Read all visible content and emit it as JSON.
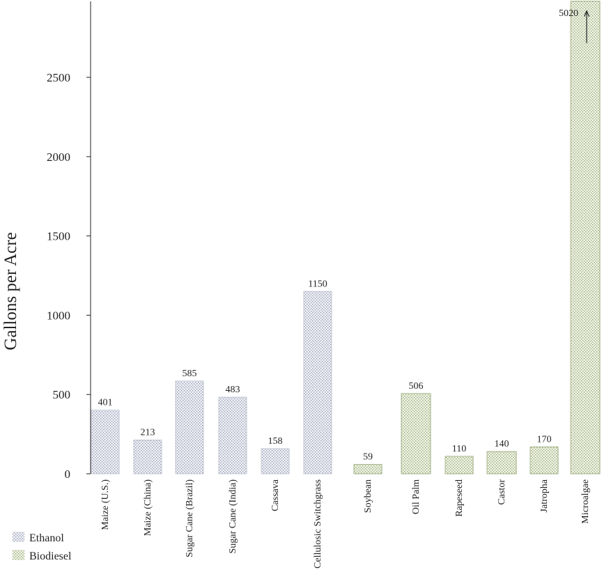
{
  "chart_data": {
    "type": "bar",
    "ylabel": "Gallons per Acre",
    "xlabel": "",
    "title": "",
    "ylim": [
      0,
      2980
    ],
    "yticks": [
      0,
      500,
      1000,
      1500,
      2000,
      2500
    ],
    "categories": [
      "Maize (U.S.)",
      "Maize (China)",
      "Sugar Cane (Brazil)",
      "Sugar Cane (India)",
      "Cassava",
      "Cellulosic Switchgrass",
      "Soybean",
      "Oil Palm",
      "Rapeseed",
      "Castor",
      "Jatropha",
      "Microalgae"
    ],
    "values": [
      401,
      213,
      585,
      483,
      158,
      1150,
      59,
      506,
      110,
      140,
      170,
      5020
    ],
    "value_labels": [
      "401",
      "213",
      "585",
      "483",
      "158",
      "1150",
      "59",
      "506",
      "110",
      "140",
      "170",
      "5020"
    ],
    "groups": [
      "Ethanol",
      "Ethanol",
      "Ethanol",
      "Ethanol",
      "Ethanol",
      "Ethanol",
      "Biodiesel",
      "Biodiesel",
      "Biodiesel",
      "Biodiesel",
      "Biodiesel",
      "Biodiesel"
    ],
    "truncated": [
      false,
      false,
      false,
      false,
      false,
      false,
      false,
      false,
      false,
      false,
      false,
      true
    ],
    "legend": {
      "position": "bottom-left",
      "entries": [
        {
          "name": "Ethanol",
          "color": "#a9aec4"
        },
        {
          "name": "Biodiesel",
          "color": "#a9b98a"
        }
      ]
    },
    "grid": false
  }
}
